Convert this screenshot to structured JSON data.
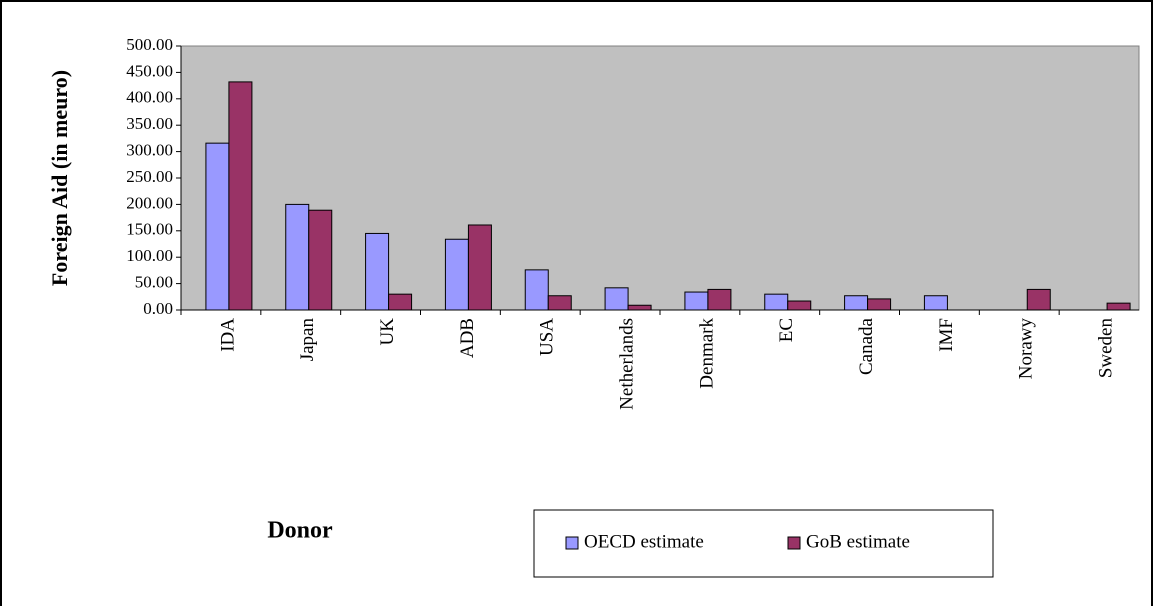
{
  "chart_data": {
    "type": "bar",
    "y_label": "Foreign Aid (in meuro)",
    "x_label": "Donor",
    "categories": [
      "IDA",
      "Japan",
      "UK",
      "ADB",
      "USA",
      "Netherlands",
      "Denmark",
      "EC",
      "Canada",
      "IMF",
      "Norawy",
      "Sweden"
    ],
    "series": [
      {
        "name": "OECD estimate",
        "color": "#9999ff",
        "values": [
          316,
          200,
          145,
          134,
          76,
          42,
          34,
          30,
          27,
          27,
          0,
          0
        ]
      },
      {
        "name": "GoB estimate",
        "color": "#993366",
        "values": [
          432,
          189,
          30,
          161,
          27,
          9,
          39,
          17,
          21,
          0,
          39,
          13
        ]
      }
    ],
    "ylim": [
      0,
      500
    ],
    "yticks": [
      {
        "value": 0,
        "label": "0.00"
      },
      {
        "value": 50,
        "label": "50.00"
      },
      {
        "value": 100,
        "label": "100.00"
      },
      {
        "value": 150,
        "label": "150.00"
      },
      {
        "value": 200,
        "label": "200.00"
      },
      {
        "value": 250,
        "label": "250.00"
      },
      {
        "value": 300,
        "label": "300.00"
      },
      {
        "value": 350,
        "label": "350.00"
      },
      {
        "value": 400,
        "label": "400.00"
      },
      {
        "value": 450,
        "label": "450.00"
      },
      {
        "value": 500,
        "label": "500.00"
      }
    ],
    "grid": false,
    "plot_background": "#c0c0c0"
  }
}
